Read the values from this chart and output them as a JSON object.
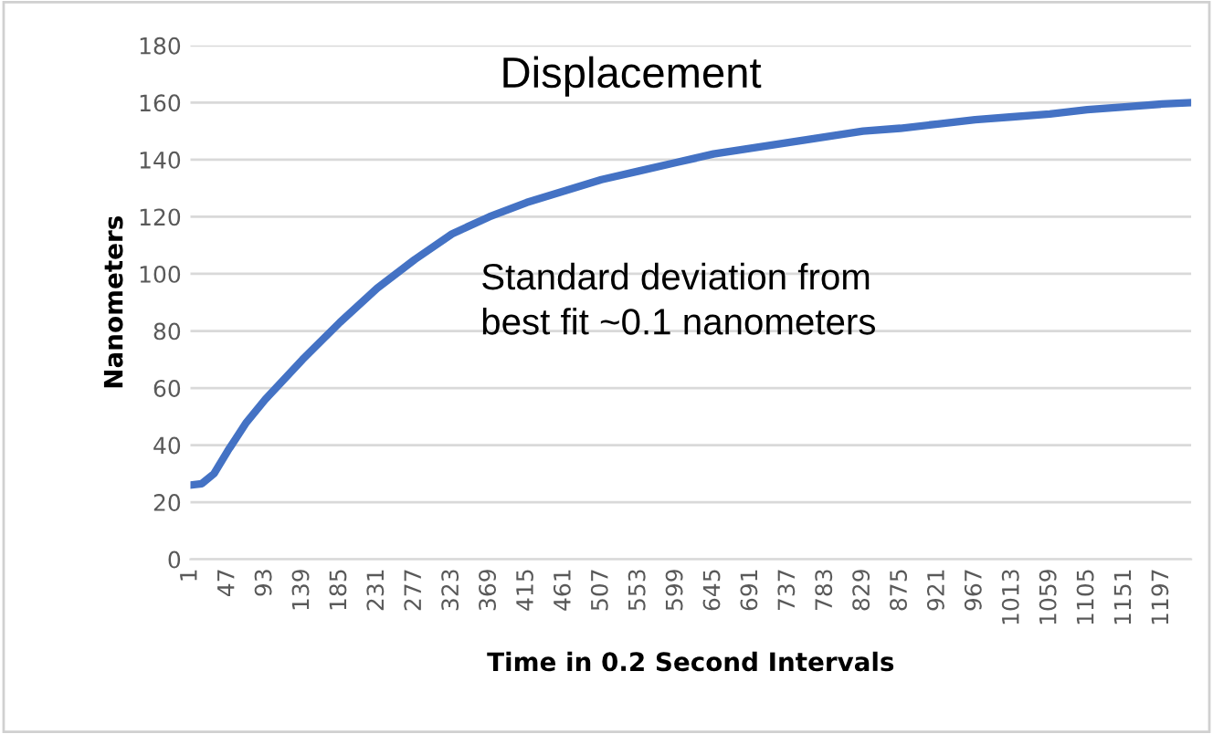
{
  "chart_data": {
    "type": "line",
    "title": "Displacement",
    "xlabel": "Time in 0.2 Second Intervals",
    "ylabel": "Nanometers",
    "annotations": [
      "Standard deviation from\nbest fit ~0.1 nanometers"
    ],
    "series": [
      {
        "color": "#4472c4",
        "x": [
          1,
          15,
          30,
          47,
          70,
          93,
          139,
          185,
          231,
          277,
          323,
          369,
          415,
          461,
          507,
          553,
          599,
          645,
          691,
          737,
          783,
          829,
          875,
          921,
          967,
          1013,
          1059,
          1105,
          1151,
          1197,
          1233
        ],
        "values": [
          26,
          26.5,
          30,
          38,
          48,
          56,
          70,
          83,
          95,
          105,
          114,
          120,
          125,
          129,
          133,
          136,
          139,
          142,
          144,
          146,
          148,
          150,
          151,
          152.5,
          154,
          155,
          156,
          157.5,
          158.5,
          159.5,
          160
        ]
      }
    ],
    "xlim": [
      1,
      1233
    ],
    "xticks": [
      1,
      47,
      93,
      139,
      185,
      231,
      277,
      323,
      369,
      415,
      461,
      507,
      553,
      599,
      645,
      691,
      737,
      783,
      829,
      875,
      921,
      967,
      1013,
      1059,
      1105,
      1151,
      1197
    ],
    "ylim": [
      0,
      180
    ],
    "yticks": [
      0,
      20,
      40,
      60,
      80,
      100,
      120,
      140,
      160,
      180
    ],
    "grid": "y",
    "marker": "none",
    "line_style": "solid"
  }
}
